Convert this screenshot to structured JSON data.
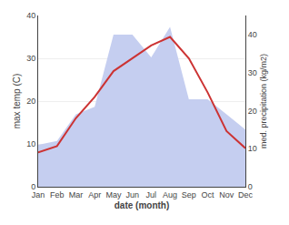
{
  "chart_data": {
    "type": "line",
    "categories": [
      "Jan",
      "Feb",
      "Mar",
      "Apr",
      "May",
      "Jun",
      "Jul",
      "Aug",
      "Sep",
      "Oct",
      "Nov",
      "Dec"
    ],
    "series": [
      {
        "type": "area",
        "color": "#c5cef0",
        "axis": "y2",
        "values": [
          11,
          12,
          19,
          21,
          40,
          40,
          34,
          42,
          23,
          23,
          19,
          15
        ]
      },
      {
        "type": "line",
        "color": "#cc3333",
        "values": [
          8.0,
          9.5,
          16.0,
          21.0,
          27.0,
          30.0,
          33.0,
          35.0,
          30.0,
          22.0,
          13.0,
          9.0
        ]
      }
    ],
    "xlabel": "date (month)",
    "ylabel": "max temp (C)",
    "y2label": "med. precipitation (kg/m2)",
    "ylim": [
      0,
      40
    ],
    "yticks": [
      0,
      10,
      20,
      30,
      40
    ],
    "y2lim": [
      0,
      45
    ],
    "y2ticks": [
      0,
      10,
      20,
      30,
      40
    ],
    "grid": true
  }
}
